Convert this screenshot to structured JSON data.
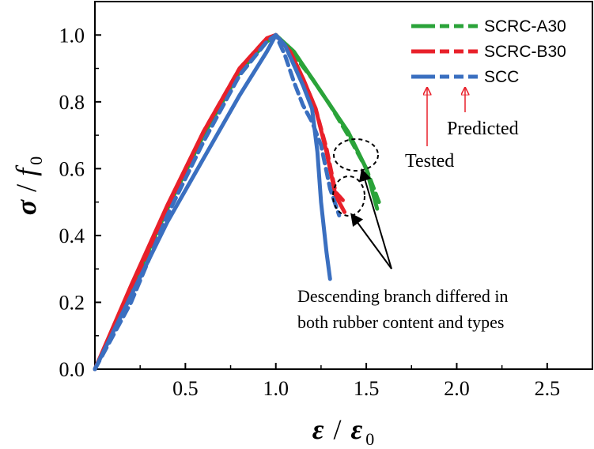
{
  "chart_data": {
    "type": "line",
    "xlabel": {
      "main": "ε",
      "slash": "/",
      "sub_main": "ε",
      "sub": "0"
    },
    "ylabel": {
      "main": "σ",
      "slash": "/",
      "sub_main": "f",
      "sub": "0"
    },
    "xlim": [
      0,
      2.75
    ],
    "ylim": [
      0,
      1.1
    ],
    "xticks": [
      0.5,
      1.0,
      1.5,
      2.0,
      2.5
    ],
    "xtick_labels": [
      "0.5",
      "1.0",
      "1.5",
      "2.0",
      "2.5"
    ],
    "yticks": [
      0.0,
      0.2,
      0.4,
      0.6,
      0.8,
      1.0
    ],
    "ytick_labels": [
      "0.0",
      "0.2",
      "0.4",
      "0.6",
      "0.8",
      "1.0"
    ],
    "series": [
      {
        "name": "SCRC-A30",
        "color": "#2aa339",
        "style": "tested",
        "x": [
          0.0,
          0.2,
          0.4,
          0.6,
          0.8,
          0.95,
          1.0,
          1.1,
          1.2,
          1.3,
          1.4,
          1.5,
          1.56
        ],
        "y": [
          0.0,
          0.24,
          0.48,
          0.7,
          0.89,
          0.98,
          1.0,
          0.95,
          0.87,
          0.79,
          0.71,
          0.6,
          0.48
        ]
      },
      {
        "name": "SCRC-A30",
        "color": "#2aa339",
        "style": "predicted",
        "x": [
          0.0,
          0.2,
          0.4,
          0.6,
          0.8,
          0.95,
          1.0,
          1.1,
          1.2,
          1.3,
          1.4,
          1.5,
          1.57
        ],
        "y": [
          0.0,
          0.23,
          0.47,
          0.69,
          0.88,
          0.98,
          1.0,
          0.94,
          0.87,
          0.79,
          0.7,
          0.6,
          0.5
        ]
      },
      {
        "name": "SCRC-B30",
        "color": "#e8202a",
        "style": "tested",
        "x": [
          0.0,
          0.2,
          0.4,
          0.6,
          0.8,
          0.95,
          1.0,
          1.08,
          1.15,
          1.22,
          1.28,
          1.33,
          1.38
        ],
        "y": [
          0.0,
          0.25,
          0.49,
          0.71,
          0.9,
          0.99,
          1.0,
          0.95,
          0.87,
          0.78,
          0.65,
          0.52,
          0.47
        ]
      },
      {
        "name": "SCRC-B30",
        "color": "#e8202a",
        "style": "predicted",
        "x": [
          0.0,
          0.2,
          0.4,
          0.6,
          0.8,
          0.95,
          1.0,
          1.08,
          1.15,
          1.22,
          1.28,
          1.33,
          1.38
        ],
        "y": [
          0.0,
          0.24,
          0.48,
          0.71,
          0.9,
          0.99,
          1.0,
          0.95,
          0.87,
          0.78,
          0.66,
          0.53,
          0.5
        ]
      },
      {
        "name": "SCC",
        "color": "#3a6fc0",
        "style": "tested",
        "x": [
          0.0,
          0.2,
          0.4,
          0.6,
          0.8,
          0.95,
          1.0,
          1.05,
          1.1,
          1.15,
          1.2,
          1.23,
          1.25,
          1.28,
          1.3
        ],
        "y": [
          0.0,
          0.22,
          0.44,
          0.63,
          0.82,
          0.95,
          1.0,
          0.97,
          0.91,
          0.85,
          0.78,
          0.65,
          0.5,
          0.35,
          0.27
        ]
      },
      {
        "name": "SCC",
        "color": "#3a6fc0",
        "style": "predicted",
        "x": [
          0.0,
          0.2,
          0.4,
          0.6,
          0.8,
          0.95,
          1.0,
          1.05,
          1.1,
          1.15,
          1.2,
          1.25,
          1.3,
          1.35
        ],
        "y": [
          0.0,
          0.2,
          0.46,
          0.68,
          0.88,
          0.98,
          1.0,
          0.94,
          0.86,
          0.79,
          0.74,
          0.67,
          0.54,
          0.46
        ]
      }
    ],
    "legend": {
      "placement": "top-right",
      "items": [
        {
          "label": "SCRC-A30",
          "color": "#2aa339"
        },
        {
          "label": "SCRC-B30",
          "color": "#e8202a"
        },
        {
          "label": "SCC",
          "color": "#3a6fc0"
        }
      ]
    },
    "annotations": {
      "tested": "Tested",
      "predicted": "Predicted",
      "description_line1": "Descending branch differed in",
      "description_line2": "both rubber content and types",
      "arrow_color": "#e8202a"
    }
  }
}
